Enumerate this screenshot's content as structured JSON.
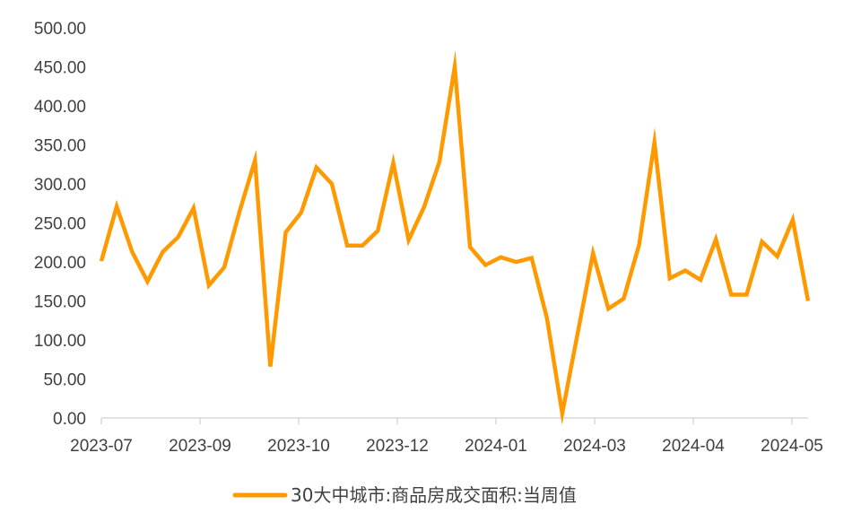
{
  "chart_data": {
    "type": "line",
    "title": "",
    "xlabel": "",
    "ylabel": "",
    "ylim": [
      0,
      500
    ],
    "y_ticks": [
      "0.00",
      "50.00",
      "100.00",
      "150.00",
      "200.00",
      "250.00",
      "300.00",
      "350.00",
      "400.00",
      "450.00",
      "500.00"
    ],
    "x_tick_labels": [
      "2023-07",
      "2023-09",
      "2023-10",
      "2023-12",
      "2024-01",
      "2024-03",
      "2024-04",
      "2024-05"
    ],
    "grid": false,
    "legend_position": "bottom",
    "series": [
      {
        "name": "30大中城市:商品房成交面积:当周值",
        "color": "#FF9900",
        "values": [
          201,
          271,
          213,
          175,
          213,
          232,
          269,
          170,
          193,
          265,
          330,
          66,
          238,
          263,
          321,
          300,
          221,
          221,
          240,
          327,
          228,
          270,
          328,
          450,
          219,
          196,
          206,
          200,
          205,
          128,
          6,
          108,
          211,
          140,
          153,
          222,
          353,
          179,
          189,
          177,
          229,
          158,
          158,
          226,
          207,
          254,
          150
        ]
      }
    ]
  }
}
